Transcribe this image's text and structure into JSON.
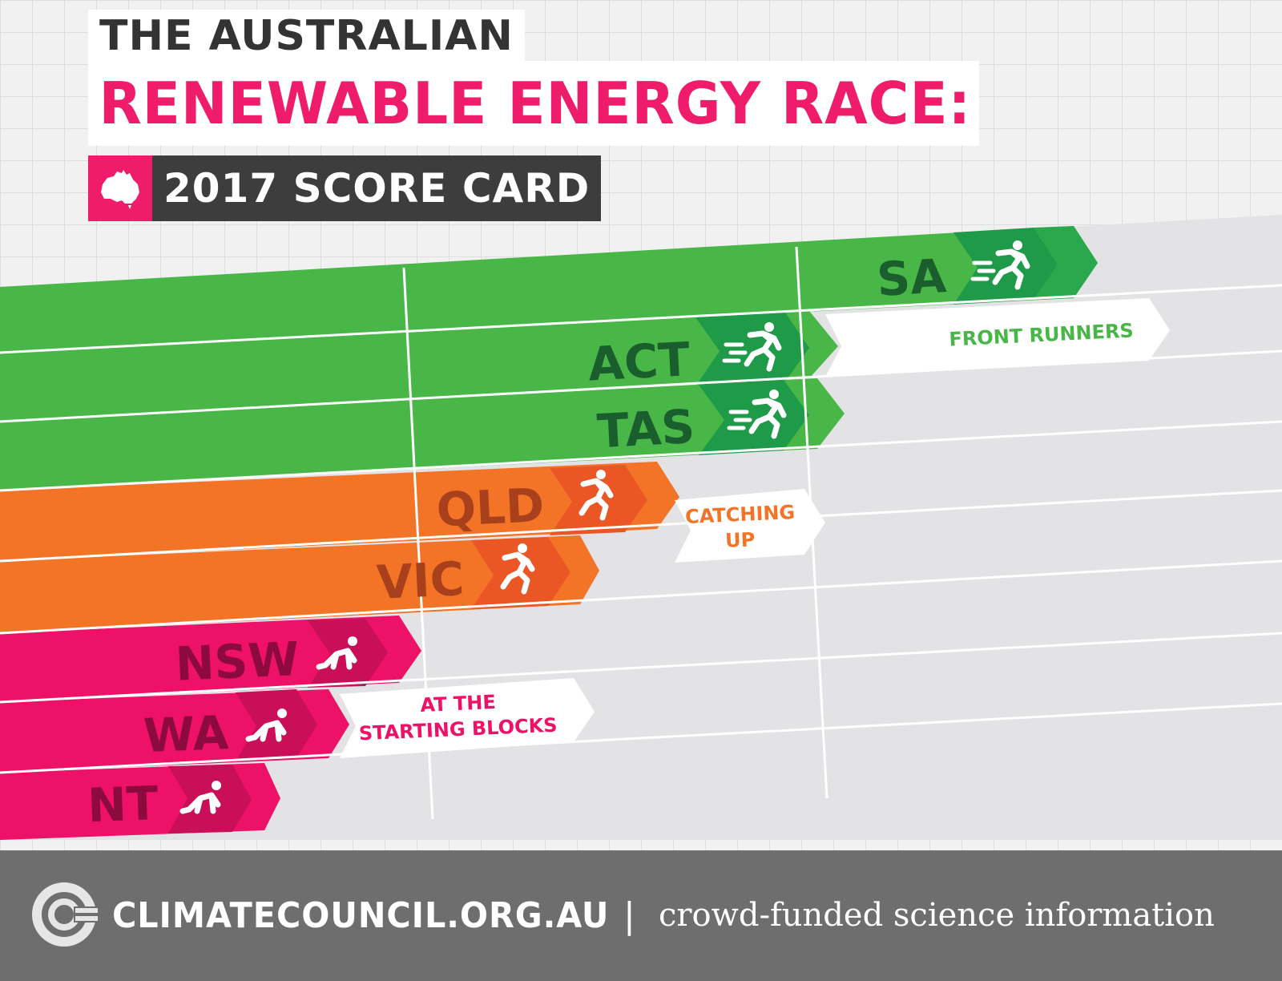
{
  "header": {
    "title_line1": "THE AUSTRALIAN",
    "title_line2": "RENEWABLE ENERGY RACE:",
    "subtitle": "2017 SCORE CARD"
  },
  "colors": {
    "green": "#49b748",
    "green_dark": "#1e9a49",
    "green_label": "#1a5e2d",
    "orange": "#f37327",
    "orange_dark": "#ea5724",
    "orange_label": "#a8401c",
    "pink": "#ee1168",
    "pink_dark": "#c90f57",
    "pink_label": "#8c0a3d",
    "lane": "#e3e3e6",
    "tag_green_text": "#49b748",
    "tag_orange_text": "#f37327",
    "tag_pink_text": "#ee1168"
  },
  "lanes": [
    {
      "state": "SA",
      "group": "green",
      "rank": 1,
      "icon": "sprinter-icon"
    },
    {
      "state": "ACT",
      "group": "green",
      "rank": 2,
      "icon": "sprinter-icon"
    },
    {
      "state": "TAS",
      "group": "green",
      "rank": 2,
      "icon": "sprinter-icon"
    },
    {
      "state": "QLD",
      "group": "orange",
      "rank": 3,
      "icon": "runner-icon"
    },
    {
      "state": "VIC",
      "group": "orange",
      "rank": 4,
      "icon": "runner-icon"
    },
    {
      "state": "NSW",
      "group": "pink",
      "rank": 5,
      "icon": "crouch-icon"
    },
    {
      "state": "WA",
      "group": "pink",
      "rank": 6,
      "icon": "crouch-icon"
    },
    {
      "state": "NT",
      "group": "pink",
      "rank": 7,
      "icon": "crouch-icon"
    }
  ],
  "tags": {
    "front_runners": "FRONT RUNNERS",
    "catching_up_1": "CATCHING",
    "catching_up_2": "UP",
    "starting_1": "AT THE",
    "starting_2": "STARTING BLOCKS"
  },
  "footer": {
    "site": "CLIMATECOUNCIL.ORG.AU",
    "separator": "|",
    "tagline": "crowd-funded science information"
  }
}
